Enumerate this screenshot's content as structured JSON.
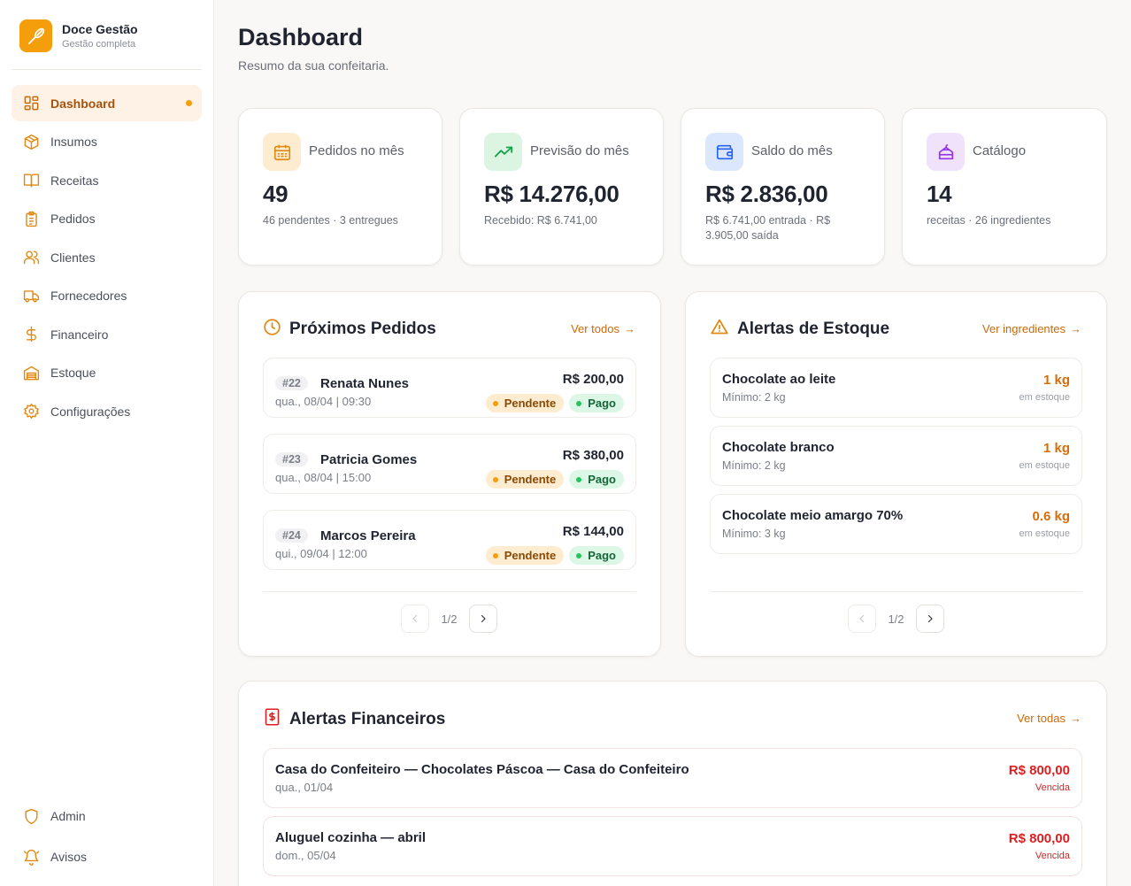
{
  "brand": {
    "name": "Doce Gestão",
    "subtitle": "Gestão completa"
  },
  "sidebar": {
    "items": [
      {
        "label": "Dashboard",
        "icon": "dashboard-icon",
        "active": true
      },
      {
        "label": "Insumos",
        "icon": "box-icon"
      },
      {
        "label": "Receitas",
        "icon": "book-icon"
      },
      {
        "label": "Pedidos",
        "icon": "clipboard-icon"
      },
      {
        "label": "Clientes",
        "icon": "users-icon"
      },
      {
        "label": "Fornecedores",
        "icon": "truck-icon"
      },
      {
        "label": "Financeiro",
        "icon": "dollar-icon"
      },
      {
        "label": "Estoque",
        "icon": "warehouse-icon"
      },
      {
        "label": "Configurações",
        "icon": "gear-icon"
      }
    ],
    "bottom": [
      {
        "label": "Admin",
        "icon": "shield-icon"
      },
      {
        "label": "Avisos",
        "icon": "bell-icon"
      }
    ]
  },
  "header": {
    "title": "Dashboard",
    "subtitle": "Resumo da sua confeitaria."
  },
  "stats": [
    {
      "label": "Pedidos no mês",
      "value": "49",
      "sub": "46 pendentes · 3 entregues",
      "icon": "calendar-icon",
      "color": "#f59e0b"
    },
    {
      "label": "Previsão do mês",
      "value": "R$ 14.276,00",
      "sub": "Recebido: R$ 6.741,00",
      "icon": "trending-up-icon",
      "color": "#16a34a"
    },
    {
      "label": "Saldo do mês",
      "value": "R$ 2.836,00",
      "sub": "R$ 6.741,00 entrada · R$ 3.905,00 saída",
      "icon": "wallet-icon",
      "color": "#2563eb"
    },
    {
      "label": "Catálogo",
      "value": "14",
      "sub": "receitas · 26 ingredientes",
      "icon": "cake-icon",
      "color": "#9333ea"
    }
  ],
  "orders": {
    "title": "Próximos Pedidos",
    "link": "Ver todos",
    "items": [
      {
        "id": "#22",
        "name": "Renata Nunes",
        "date": "qua., 08/04 | 09:30",
        "value": "R$ 200,00",
        "status": "Pendente",
        "payment": "Pago"
      },
      {
        "id": "#23",
        "name": "Patricia Gomes",
        "date": "qua., 08/04 | 15:00",
        "value": "R$ 380,00",
        "status": "Pendente",
        "payment": "Pago"
      },
      {
        "id": "#24",
        "name": "Marcos Pereira",
        "date": "qui., 09/04 | 12:00",
        "value": "R$ 144,00",
        "status": "Pendente",
        "payment": "Pago"
      }
    ],
    "page": "1/2"
  },
  "stock": {
    "title": "Alertas de Estoque",
    "link": "Ver ingredientes",
    "qty_label": "em estoque",
    "items": [
      {
        "name": "Chocolate ao leite",
        "min": "Mínimo: 2 kg",
        "qty": "1 kg"
      },
      {
        "name": "Chocolate branco",
        "min": "Mínimo: 2 kg",
        "qty": "1 kg"
      },
      {
        "name": "Chocolate meio amargo 70%",
        "min": "Mínimo: 3 kg",
        "qty": "0.6 kg"
      }
    ],
    "page": "1/2"
  },
  "finance": {
    "title": "Alertas Financeiros",
    "link": "Ver todas",
    "items": [
      {
        "name": "Casa do Confeiteiro — Chocolates Páscoa — Casa do Confeiteiro",
        "date": "qua., 01/04",
        "value": "R$ 800,00",
        "status": "Vencida"
      },
      {
        "name": "Aluguel cozinha — abril",
        "date": "dom., 05/04",
        "value": "R$ 800,00",
        "status": "Vencida"
      }
    ]
  },
  "colors": {
    "accent": "#f59e0b",
    "danger": "#dc1f1f",
    "success": "#16a34a"
  }
}
